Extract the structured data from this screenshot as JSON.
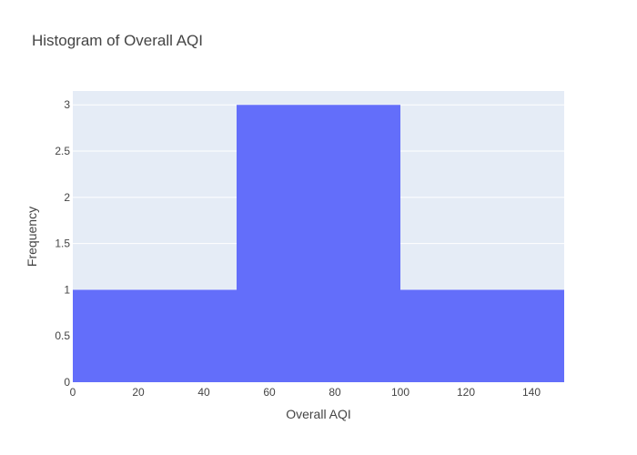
{
  "chart_data": {
    "type": "bar",
    "subtype": "histogram",
    "title": "Histogram of Overall AQI",
    "xlabel": "Overall AQI",
    "ylabel": "Frequency",
    "bins": [
      {
        "start": 0,
        "end": 50,
        "count": 1
      },
      {
        "start": 50,
        "end": 100,
        "count": 3
      },
      {
        "start": 100,
        "end": 150,
        "count": 1
      }
    ],
    "xlim": [
      0,
      150
    ],
    "ylim": [
      0,
      3.15
    ],
    "x_ticks": [
      0,
      20,
      40,
      60,
      80,
      100,
      120,
      140
    ],
    "y_ticks": [
      0,
      0.5,
      1,
      1.5,
      2,
      2.5,
      3
    ],
    "grid": true,
    "colors": {
      "bar": "#636efa",
      "plot_bg": "#e5ecf6",
      "grid": "#ffffff",
      "text": "#444444"
    }
  }
}
